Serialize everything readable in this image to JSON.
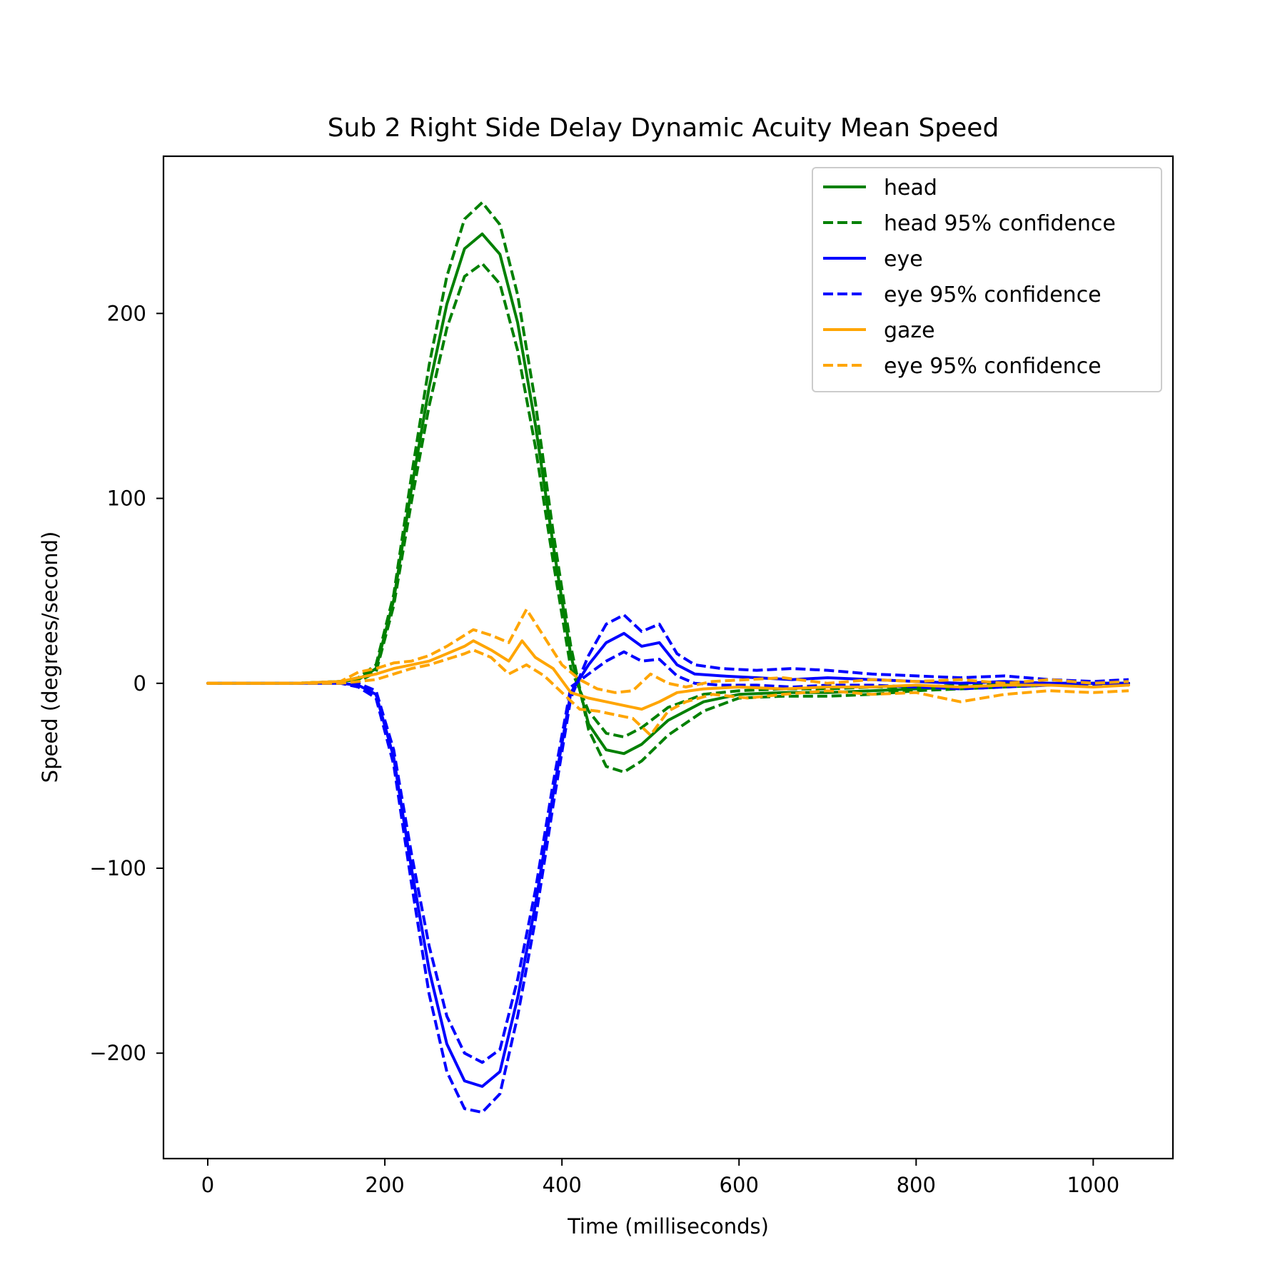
{
  "chart_data": {
    "type": "line",
    "title": "Sub 2 Right Side Delay Dynamic Acuity Mean Speed",
    "xlabel": "Time (milliseconds)",
    "ylabel": "Speed (degrees/second)",
    "xlim": [
      -50,
      1090
    ],
    "ylim": [
      -257,
      285
    ],
    "xticks": [
      0,
      200,
      400,
      600,
      800,
      1000
    ],
    "xtick_labels": [
      "0",
      "200",
      "400",
      "600",
      "800",
      "1000"
    ],
    "yticks": [
      -200,
      -100,
      0,
      100,
      200
    ],
    "ytick_labels": [
      "−200",
      "−100",
      "0",
      "100",
      "200"
    ],
    "grid": false,
    "legend_position": "top-right",
    "series": [
      {
        "name": "head",
        "color": "#008000",
        "style": "solid",
        "x": [
          0,
          50,
          100,
          150,
          170,
          190,
          210,
          230,
          250,
          270,
          290,
          310,
          330,
          350,
          370,
          390,
          410,
          430,
          450,
          470,
          490,
          520,
          560,
          600,
          650,
          700,
          750,
          800,
          850,
          900,
          950,
          1000,
          1040
        ],
        "y": [
          0,
          0,
          0,
          1,
          2,
          8,
          45,
          105,
          160,
          205,
          235,
          243,
          232,
          195,
          140,
          75,
          15,
          -22,
          -36,
          -38,
          -33,
          -20,
          -10,
          -6,
          -5,
          -5,
          -4,
          -3,
          -2,
          -1,
          -1,
          0,
          0
        ]
      },
      {
        "name": "head 95% confidence",
        "color": "#008000",
        "style": "dashed",
        "x": [
          0,
          50,
          100,
          150,
          170,
          190,
          210,
          230,
          250,
          270,
          290,
          310,
          330,
          350,
          370,
          390,
          410,
          430,
          450,
          470,
          490,
          520,
          560,
          600,
          650,
          700,
          750,
          800,
          850,
          900,
          950,
          1000,
          1040
        ],
        "y": [
          0,
          0,
          0,
          1,
          3,
          10,
          48,
          112,
          172,
          220,
          251,
          260,
          248,
          210,
          152,
          82,
          20,
          -25,
          -45,
          -48,
          -42,
          -28,
          -15,
          -8,
          -7,
          -7,
          -6,
          -4,
          -3,
          -2,
          -1,
          0,
          0
        ]
      },
      {
        "name": "",
        "color": "#008000",
        "style": "dashed",
        "x": [
          0,
          50,
          100,
          150,
          170,
          190,
          210,
          230,
          250,
          270,
          290,
          310,
          330,
          350,
          370,
          390,
          410,
          430,
          450,
          470,
          490,
          520,
          560,
          600,
          650,
          700,
          750,
          800,
          850,
          900,
          950,
          1000,
          1040
        ],
        "y": [
          0,
          0,
          0,
          1,
          1,
          6,
          42,
          98,
          150,
          192,
          220,
          227,
          216,
          180,
          128,
          66,
          8,
          -15,
          -27,
          -29,
          -24,
          -13,
          -6,
          -4,
          -3,
          -3,
          -2,
          -2,
          -1,
          0,
          0,
          0,
          0
        ]
      },
      {
        "name": "eye",
        "color": "#0000ff",
        "style": "solid",
        "x": [
          0,
          50,
          100,
          150,
          170,
          190,
          210,
          230,
          250,
          270,
          290,
          310,
          330,
          350,
          370,
          390,
          410,
          430,
          450,
          470,
          490,
          510,
          530,
          550,
          580,
          620,
          660,
          700,
          750,
          800,
          850,
          900,
          950,
          1000,
          1040
        ],
        "y": [
          0,
          0,
          0,
          0,
          -1,
          -6,
          -40,
          -100,
          -155,
          -195,
          -215,
          -218,
          -210,
          -170,
          -120,
          -60,
          -5,
          10,
          22,
          27,
          20,
          22,
          10,
          5,
          4,
          3,
          2,
          3,
          2,
          1,
          0,
          1,
          0,
          0,
          0
        ]
      },
      {
        "name": "eye 95% confidence",
        "color": "#0000ff",
        "style": "dashed",
        "x": [
          0,
          50,
          100,
          150,
          170,
          190,
          210,
          230,
          250,
          270,
          290,
          310,
          330,
          350,
          370,
          390,
          410,
          430,
          450,
          470,
          490,
          510,
          530,
          550,
          580,
          620,
          660,
          700,
          750,
          800,
          850,
          900,
          950,
          1000,
          1040
        ],
        "y": [
          0,
          0,
          0,
          0,
          -2,
          -8,
          -44,
          -108,
          -168,
          -210,
          -230,
          -232,
          -222,
          -180,
          -128,
          -66,
          -8,
          15,
          32,
          37,
          28,
          32,
          16,
          10,
          8,
          7,
          8,
          7,
          5,
          4,
          3,
          4,
          2,
          1,
          2
        ]
      },
      {
        "name": "",
        "color": "#0000ff",
        "style": "dashed",
        "x": [
          0,
          50,
          100,
          150,
          170,
          190,
          210,
          230,
          250,
          270,
          290,
          310,
          330,
          350,
          370,
          390,
          410,
          430,
          450,
          470,
          490,
          510,
          530,
          550,
          580,
          620,
          660,
          700,
          750,
          800,
          850,
          900,
          950,
          1000,
          1040
        ],
        "y": [
          0,
          0,
          0,
          0,
          0,
          -4,
          -36,
          -92,
          -142,
          -180,
          -200,
          -205,
          -198,
          -160,
          -112,
          -54,
          -2,
          5,
          12,
          17,
          12,
          13,
          4,
          0,
          -1,
          -1,
          -2,
          -1,
          -1,
          -2,
          -3,
          -2,
          -1,
          -1,
          -1
        ]
      },
      {
        "name": "gaze",
        "color": "#ffa500",
        "style": "solid",
        "x": [
          0,
          50,
          100,
          150,
          170,
          190,
          210,
          230,
          250,
          270,
          290,
          300,
          320,
          340,
          355,
          370,
          390,
          410,
          430,
          450,
          470,
          490,
          510,
          530,
          560,
          600,
          650,
          700,
          750,
          800,
          850,
          900,
          950,
          1000,
          1040
        ],
        "y": [
          0,
          0,
          0,
          1,
          3,
          5,
          8,
          10,
          12,
          16,
          20,
          23,
          18,
          12,
          23,
          14,
          8,
          -5,
          -8,
          -10,
          -12,
          -14,
          -10,
          -5,
          -3,
          -2,
          -3,
          -2,
          -2,
          -1,
          -2,
          -1,
          -1,
          -2,
          -1
        ]
      },
      {
        "name": "eye 95% confidence",
        "color": "#ffa500",
        "style": "dashed",
        "x": [
          0,
          50,
          100,
          150,
          170,
          190,
          210,
          230,
          250,
          270,
          290,
          300,
          320,
          340,
          360,
          380,
          400,
          420,
          440,
          460,
          480,
          500,
          520,
          540,
          570,
          610,
          650,
          700,
          750,
          800,
          850,
          900,
          950,
          1000,
          1040
        ],
        "y": [
          0,
          0,
          0,
          1,
          6,
          8,
          11,
          12,
          15,
          20,
          26,
          29,
          26,
          22,
          40,
          25,
          10,
          2,
          -3,
          -5,
          -4,
          5,
          0,
          -2,
          1,
          2,
          3,
          0,
          2,
          1,
          2,
          0,
          2,
          0,
          1
        ]
      },
      {
        "name": "",
        "color": "#ffa500",
        "style": "dashed",
        "x": [
          0,
          50,
          100,
          150,
          170,
          190,
          210,
          230,
          250,
          270,
          290,
          300,
          320,
          340,
          360,
          380,
          400,
          420,
          440,
          460,
          480,
          500,
          520,
          540,
          570,
          610,
          650,
          700,
          750,
          800,
          850,
          900,
          950,
          1000,
          1040
        ],
        "y": [
          0,
          0,
          0,
          0,
          1,
          2,
          5,
          8,
          10,
          13,
          16,
          18,
          14,
          5,
          10,
          4,
          -5,
          -14,
          -15,
          -17,
          -19,
          -28,
          -15,
          -10,
          -6,
          -8,
          -6,
          -4,
          -6,
          -5,
          -10,
          -6,
          -4,
          -5,
          -4
        ]
      }
    ],
    "legend": [
      {
        "label": "head",
        "color": "#008000",
        "style": "solid"
      },
      {
        "label": "head 95% confidence",
        "color": "#008000",
        "style": "dashed"
      },
      {
        "label": "eye",
        "color": "#0000ff",
        "style": "solid"
      },
      {
        "label": "eye 95% confidence",
        "color": "#0000ff",
        "style": "dashed"
      },
      {
        "label": "gaze",
        "color": "#ffa500",
        "style": "solid"
      },
      {
        "label": "eye 95% confidence",
        "color": "#ffa500",
        "style": "dashed"
      }
    ]
  }
}
